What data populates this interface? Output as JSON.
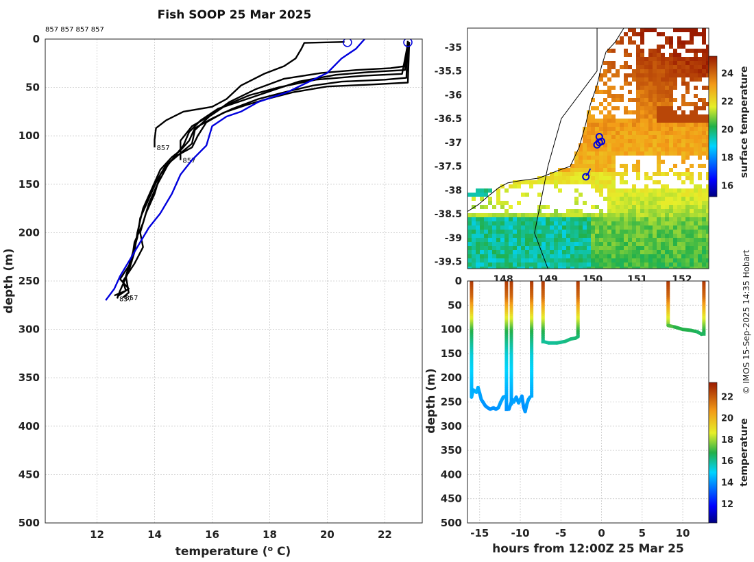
{
  "title": "Fish SOOP 25 Mar 2025",
  "top_labels": "857 857 857 857",
  "credit": "© IMOS 15-Sep-2025 14:35 Hobart",
  "colors": {
    "profile": "#000000",
    "climatology": "#0000dd"
  },
  "chart_data": [
    {
      "id": "profile",
      "type": "line",
      "title": "Fish SOOP 25 Mar 2025",
      "xlabel": "temperature (o C)",
      "ylabel": "depth (m)",
      "xlim": [
        10.2,
        23.3
      ],
      "ylim": [
        0,
        500
      ],
      "y_reversed": true,
      "xticks": [
        12,
        14,
        16,
        18,
        20,
        22
      ],
      "yticks": [
        0,
        50,
        100,
        150,
        200,
        250,
        300,
        350,
        400,
        450,
        500
      ],
      "grid": true,
      "series": [
        {
          "name": "profile 1",
          "color": "#000000",
          "points": [
            [
              20.6,
              3
            ],
            [
              19.2,
              4
            ],
            [
              19.1,
              10
            ],
            [
              18.9,
              20
            ],
            [
              18.5,
              28
            ],
            [
              17.8,
              36
            ],
            [
              17.0,
              48
            ],
            [
              16.5,
              62
            ],
            [
              16.0,
              70
            ],
            [
              15.0,
              75
            ],
            [
              14.4,
              84
            ],
            [
              14.05,
              92
            ],
            [
              14.0,
              104
            ],
            [
              14.0,
              112
            ]
          ],
          "label": "857"
        },
        {
          "name": "profile 2",
          "color": "#000000",
          "points": [
            [
              22.8,
              2
            ],
            [
              22.7,
              28
            ],
            [
              22.2,
              30
            ],
            [
              21.0,
              32
            ],
            [
              19.8,
              35
            ],
            [
              18.5,
              41
            ],
            [
              17.5,
              52
            ],
            [
              16.6,
              65
            ],
            [
              16.0,
              78
            ],
            [
              15.3,
              90
            ],
            [
              14.9,
              105
            ],
            [
              14.9,
              125
            ]
          ],
          "label": "857"
        },
        {
          "name": "profile 3",
          "color": "#000000",
          "points": [
            [
              22.8,
              2
            ],
            [
              22.75,
              40
            ],
            [
              22.0,
              42
            ],
            [
              20.5,
              44
            ],
            [
              19.5,
              48
            ],
            [
              18.5,
              55
            ],
            [
              17.6,
              62
            ],
            [
              16.7,
              72
            ],
            [
              16.0,
              82
            ],
            [
              15.4,
              92
            ],
            [
              15.2,
              105
            ],
            [
              14.9,
              115
            ],
            [
              14.6,
              122
            ],
            [
              14.2,
              135
            ],
            [
              13.9,
              155
            ],
            [
              13.6,
              175
            ],
            [
              13.4,
              200
            ],
            [
              13.3,
              220
            ],
            [
              13.1,
              240
            ],
            [
              12.8,
              260
            ],
            [
              12.7,
              268
            ]
          ],
          "label": "857"
        },
        {
          "name": "profile 4",
          "color": "#000000",
          "points": [
            [
              22.85,
              3
            ],
            [
              22.8,
              45
            ],
            [
              21.5,
              47
            ],
            [
              20.0,
              49
            ],
            [
              18.8,
              55
            ],
            [
              17.9,
              62
            ],
            [
              17.2,
              68
            ],
            [
              16.4,
              76
            ],
            [
              15.8,
              86
            ],
            [
              15.5,
              100
            ],
            [
              15.3,
              112
            ],
            [
              14.8,
              120
            ],
            [
              14.4,
              130
            ],
            [
              14.1,
              145
            ],
            [
              13.8,
              165
            ],
            [
              13.5,
              185
            ],
            [
              13.4,
              205
            ],
            [
              13.2,
              225
            ],
            [
              13.0,
              245
            ],
            [
              13.1,
              262
            ],
            [
              12.9,
              267
            ]
          ],
          "label": "857"
        },
        {
          "name": "profile 5",
          "color": "#000000",
          "points": [
            [
              22.8,
              4
            ],
            [
              22.7,
              32
            ],
            [
              21.5,
              34
            ],
            [
              20.3,
              37
            ],
            [
              19.0,
              44
            ],
            [
              18.0,
              54
            ],
            [
              17.1,
              63
            ],
            [
              16.2,
              72
            ],
            [
              15.6,
              84
            ],
            [
              15.2,
              96
            ],
            [
              15.0,
              110
            ],
            [
              14.6,
              125
            ],
            [
              14.2,
              140
            ],
            [
              14.0,
              160
            ],
            [
              13.7,
              180
            ],
            [
              13.5,
              200
            ],
            [
              13.6,
              215
            ],
            [
              13.3,
              232
            ],
            [
              12.9,
              250
            ],
            [
              13.0,
              260
            ],
            [
              12.6,
              265
            ]
          ]
        },
        {
          "name": "profile 6",
          "color": "#000000",
          "points": [
            [
              22.8,
              5
            ],
            [
              22.6,
              36
            ],
            [
              21.2,
              38
            ],
            [
              19.6,
              42
            ],
            [
              18.3,
              50
            ],
            [
              17.3,
              58
            ],
            [
              16.5,
              68
            ],
            [
              15.9,
              80
            ],
            [
              15.4,
              94
            ],
            [
              15.3,
              108
            ],
            [
              14.9,
              118
            ],
            [
              14.5,
              128
            ],
            [
              14.1,
              150
            ],
            [
              13.8,
              170
            ],
            [
              13.6,
              190
            ],
            [
              13.3,
              210
            ],
            [
              13.2,
              230
            ],
            [
              12.8,
              248
            ],
            [
              13.1,
              258
            ],
            [
              12.7,
              266
            ]
          ]
        },
        {
          "name": "climatology",
          "color": "#0000dd",
          "points": [
            [
              21.3,
              0
            ],
            [
              21.0,
              10
            ],
            [
              20.5,
              20
            ],
            [
              20.0,
              35
            ],
            [
              19.3,
              45
            ],
            [
              18.6,
              55
            ],
            [
              17.6,
              65
            ],
            [
              17.0,
              75
            ],
            [
              16.5,
              80
            ],
            [
              16.0,
              90
            ],
            [
              15.9,
              100
            ],
            [
              15.8,
              110
            ],
            [
              15.3,
              125
            ],
            [
              14.9,
              140
            ],
            [
              14.6,
              160
            ],
            [
              14.4,
              170
            ],
            [
              14.2,
              180
            ],
            [
              13.8,
              195
            ],
            [
              13.5,
              210
            ],
            [
              13.1,
              230
            ],
            [
              12.8,
              245
            ],
            [
              12.6,
              258
            ],
            [
              12.3,
              270
            ]
          ]
        }
      ],
      "markers": [
        {
          "x": 20.7,
          "y": 2,
          "color": "#0000dd"
        },
        {
          "x": 22.8,
          "y": 2,
          "color": "#0000dd"
        }
      ]
    },
    {
      "id": "map",
      "type": "heatmap",
      "xlim": [
        147.2,
        152.6
      ],
      "ylim": [
        -39.65,
        -34.6
      ],
      "xticks": [
        148,
        149,
        150,
        151,
        152
      ],
      "xtick_labels": [
        "148",
        "149",
        "150",
        "151",
        "152"
      ],
      "yticks": [
        -35,
        -35.5,
        -36,
        -36.5,
        -37,
        -37.5,
        -38,
        -38.5,
        -39,
        -39.5
      ],
      "colorbar": {
        "label": "surface temperature",
        "range": [
          15.2,
          25.2
        ],
        "ticks": [
          16,
          18,
          20,
          22,
          24
        ]
      },
      "track": [
        [
          149.95,
          -37.55
        ],
        [
          149.9,
          -37.65
        ],
        [
          149.85,
          -37.7
        ]
      ],
      "track_markers": [
        [
          149.85,
          -37.72
        ],
        [
          150.15,
          -36.88
        ],
        [
          150.15,
          -37.0
        ],
        [
          150.1,
          -37.05
        ],
        [
          150.2,
          -36.98
        ]
      ]
    },
    {
      "id": "timeseries",
      "type": "scatter",
      "xlabel": "hours from 12:00Z 25 Mar 25",
      "ylabel": "depth (m)",
      "xlim": [
        -16.5,
        13.2
      ],
      "ylim": [
        0,
        500
      ],
      "y_reversed": true,
      "xticks": [
        -15,
        -10,
        -5,
        0,
        5,
        10
      ],
      "yticks": [
        0,
        50,
        100,
        150,
        200,
        250,
        300,
        350,
        400,
        450,
        500
      ],
      "colorbar": {
        "label": "temperature",
        "range": [
          10.2,
          23.3
        ],
        "ticks": [
          12,
          14,
          16,
          18,
          20,
          22
        ]
      },
      "casts": [
        {
          "start": -16.0,
          "end": -15.6,
          "bottom": [
            [
              -16.0,
              240
            ],
            [
              -15.8,
              225
            ],
            [
              -15.4,
              230
            ],
            [
              -15.2,
              220
            ],
            [
              -15.0,
              232
            ],
            [
              -14.8,
              245
            ],
            [
              -14.6,
              250
            ],
            [
              -14.3,
              258
            ],
            [
              -14.0,
              262
            ],
            [
              -13.7,
              265
            ],
            [
              -13.3,
              262
            ],
            [
              -13.0,
              265
            ],
            [
              -12.7,
              262
            ],
            [
              -12.4,
              250
            ],
            [
              -12.1,
              240
            ],
            [
              -11.8,
              238
            ]
          ]
        },
        {
          "start": -11.8,
          "end": -11.4,
          "bottom": [
            [
              -11.4,
              265
            ],
            [
              -11.2,
              255
            ],
            [
              -11.0,
              245
            ],
            [
              -10.8,
              250
            ],
            [
              -10.5,
              240
            ],
            [
              -10.2,
              252
            ],
            [
              -10.0,
              245
            ],
            [
              -9.8,
              238
            ],
            [
              -9.6,
              260
            ],
            [
              -9.4,
              270
            ],
            [
              -9.2,
              255
            ],
            [
              -9.0,
              245
            ],
            [
              -8.8,
              240
            ]
          ]
        },
        {
          "start": -11.1,
          "end": -11.1,
          "bottom": []
        },
        {
          "start": -8.6,
          "end": -8.5,
          "bottom": []
        },
        {
          "start": -7.3,
          "end": -7.0,
          "bottom": [
            [
              -7.2,
              125
            ],
            [
              -6.5,
              128
            ],
            [
              -5.5,
              128
            ],
            [
              -4.5,
              125
            ],
            [
              -3.8,
              120
            ],
            [
              -3.2,
              118
            ],
            [
              -2.9,
              115
            ]
          ]
        },
        {
          "start": 8.1,
          "end": 8.3,
          "bottom": [
            [
              8.2,
              92
            ],
            [
              9.0,
              95
            ],
            [
              10.0,
              100
            ],
            [
              11.0,
              102
            ],
            [
              11.8,
              105
            ],
            [
              12.3,
              110
            ],
            [
              12.5,
              108
            ]
          ]
        },
        {
          "start": 12.5,
          "end": 12.6,
          "bottom": []
        }
      ]
    }
  ]
}
